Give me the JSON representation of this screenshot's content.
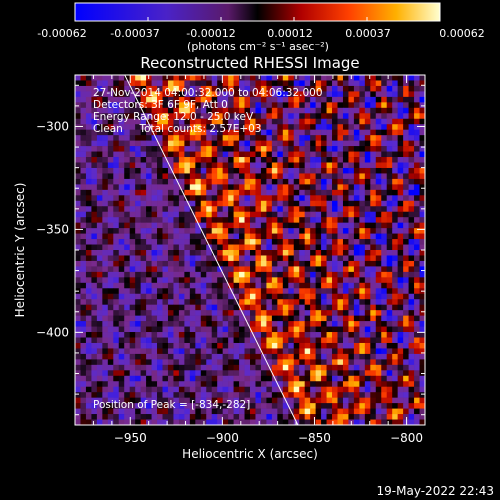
{
  "colorbar": {
    "ticks": [
      "-0.00062",
      "-0.00037",
      "-0.00012",
      "0.00012",
      "0.00037",
      "0.00062"
    ],
    "unit_label": "(photons cm⁻² s⁻¹ asec⁻²)"
  },
  "plot": {
    "title": "Reconstructed RHESSI Image",
    "info_lines": [
      "27-Nov-2014 04:00:32.000 to 04:06:32.000",
      "Detectors: 3F 6F 9F, Att 0",
      "Energy Range: 12.0 - 25.0 keV",
      "Clean     Total counts: 2.57E+03"
    ],
    "peak_text": "Position of Peak = [-834,-282]",
    "timestamp": "19-May-2022 22:43"
  },
  "chart_data": {
    "type": "heatmap",
    "title": "Reconstructed RHESSI Image",
    "xlabel": "Heliocentric X (arcsec)",
    "ylabel": "Heliocentric Y (arcsec)",
    "xlim": [
      -980,
      -790
    ],
    "ylim": [
      -445,
      -275
    ],
    "x_ticks": [
      -950,
      -900,
      -850,
      -800
    ],
    "y_ticks": [
      -300,
      -350,
      -400
    ],
    "x_tick_labels": [
      "−950",
      "−900",
      "−850",
      "−800"
    ],
    "y_tick_labels": [
      "−300",
      "−350",
      "−400"
    ],
    "color_range": [
      -0.00062,
      0.00062
    ],
    "colormap": [
      "#0000ff",
      "#5a2bd0",
      "#7a2a8a",
      "#000000",
      "#b00000",
      "#ff4000",
      "#ffb000",
      "#ffffc0"
    ],
    "limb_line": [
      [
        -953,
        -275
      ],
      [
        -859,
        -445
      ]
    ],
    "peak_position": [
      -834,
      -282
    ]
  }
}
